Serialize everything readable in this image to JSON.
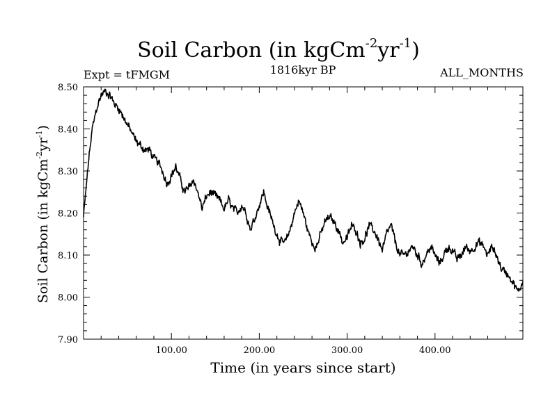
{
  "chart_data": {
    "type": "line",
    "title": "Soil Carbon (in kgCm",
    "title_sup1": "-2",
    "title_mid": "yr",
    "title_sup2": "-1",
    "title_end": ")",
    "expt_label": "Expt = tFMGM",
    "subtitle": "1816kyr BP",
    "months_label": "ALL_MONTHS",
    "xlabel": "Time (in years since start)",
    "ylabel": "Soil Carbon (in kgCm",
    "ylabel_sup1": "-2",
    "ylabel_mid": "yr",
    "ylabel_sup2": "-1",
    "ylabel_end": ")",
    "xlim": [
      0,
      500
    ],
    "ylim": [
      7.9,
      8.5
    ],
    "xticks": [
      100,
      200,
      300,
      400
    ],
    "xtick_labels": [
      "100.00",
      "200.00",
      "300.00",
      "400.00"
    ],
    "yticks": [
      7.9,
      8.0,
      8.1,
      8.2,
      8.3,
      8.4,
      8.5
    ],
    "ytick_labels": [
      "7.90",
      "8.00",
      "8.10",
      "8.20",
      "8.30",
      "8.40",
      "8.50"
    ],
    "line_color": "#000000",
    "series": [
      {
        "name": "Soil Carbon",
        "x": [
          0,
          3,
          6,
          10,
          15,
          20,
          25,
          30,
          35,
          40,
          45,
          50,
          55,
          60,
          65,
          70,
          75,
          80,
          85,
          90,
          95,
          100,
          105,
          110,
          115,
          120,
          125,
          130,
          135,
          140,
          145,
          150,
          155,
          160,
          165,
          170,
          175,
          180,
          185,
          190,
          195,
          200,
          205,
          210,
          215,
          220,
          225,
          230,
          235,
          240,
          245,
          250,
          255,
          260,
          265,
          270,
          275,
          280,
          285,
          290,
          295,
          300,
          305,
          310,
          315,
          320,
          325,
          330,
          335,
          340,
          345,
          350,
          355,
          360,
          365,
          370,
          375,
          380,
          385,
          390,
          395,
          400,
          405,
          410,
          415,
          420,
          425,
          430,
          435,
          440,
          445,
          450,
          455,
          460,
          465,
          470,
          475,
          480,
          485,
          490,
          495,
          500
        ],
        "values": [
          8.19,
          8.26,
          8.33,
          8.4,
          8.45,
          8.48,
          8.49,
          8.48,
          8.46,
          8.45,
          8.43,
          8.41,
          8.39,
          8.37,
          8.36,
          8.35,
          8.35,
          8.33,
          8.32,
          8.3,
          8.27,
          8.29,
          8.31,
          8.28,
          8.25,
          8.26,
          8.28,
          8.25,
          8.21,
          8.24,
          8.25,
          8.24,
          8.23,
          8.21,
          8.23,
          8.21,
          8.2,
          8.22,
          8.2,
          8.16,
          8.19,
          8.22,
          8.25,
          8.21,
          8.18,
          8.15,
          8.13,
          8.13,
          8.16,
          8.2,
          8.23,
          8.2,
          8.16,
          8.13,
          8.12,
          8.15,
          8.18,
          8.19,
          8.18,
          8.16,
          8.13,
          8.14,
          8.17,
          8.16,
          8.13,
          8.14,
          8.17,
          8.16,
          8.14,
          8.11,
          8.15,
          8.17,
          8.13,
          8.1,
          8.1,
          8.11,
          8.12,
          8.1,
          8.08,
          8.1,
          8.12,
          8.1,
          8.08,
          8.1,
          8.12,
          8.11,
          8.09,
          8.1,
          8.12,
          8.11,
          8.12,
          8.13,
          8.12,
          8.1,
          8.12,
          8.1,
          8.07,
          8.06,
          8.05,
          8.03,
          8.01,
          8.04
        ]
      }
    ]
  }
}
